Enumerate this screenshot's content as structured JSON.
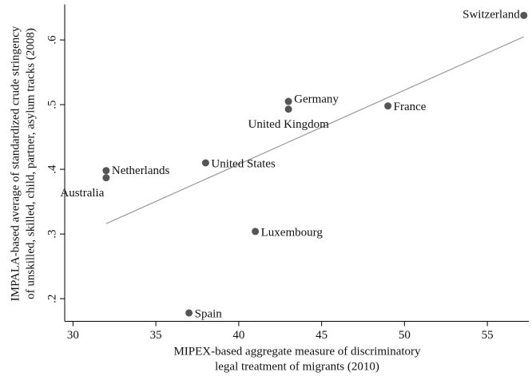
{
  "chart_data": {
    "type": "scatter",
    "x_label": [
      "MIPEX-based aggregate measure of discriminatory",
      "legal treatment of migrants (2010)"
    ],
    "y_label": [
      "IMPALA-based average of standardized crude stringency",
      "of unskilled, skilled, child, partner, asylum tracks (2008)"
    ],
    "series": [
      {
        "color": "#555555",
        "labels": [
          "Switzerland",
          "Germany",
          "United Kingdom",
          "France",
          "Netherlands",
          "Australia",
          "United States",
          "Luxembourg",
          "Spain"
        ],
        "x": [
          57.2,
          43,
          43,
          49,
          32,
          32,
          38,
          41,
          37
        ],
        "values": [
          0.638,
          0.505,
          0.493,
          0.498,
          0.398,
          0.387,
          0.41,
          0.304,
          0.178
        ]
      }
    ],
    "fit_line": {
      "color": "#999999",
      "x": [
        32,
        57.2
      ],
      "values": [
        0.316,
        0.605
      ]
    },
    "xlim": [
      29.5,
      57.5
    ],
    "xticks": [
      30,
      35,
      40,
      45,
      50,
      55
    ],
    "ylim": [
      0.165,
      0.655
    ],
    "yticks": [
      {
        "value": 0.2,
        "label": ".2"
      },
      {
        "value": 0.3,
        "label": ".3"
      },
      {
        "value": 0.4,
        "label": ".4"
      },
      {
        "value": 0.5,
        "label": ".5"
      },
      {
        "value": 0.6,
        "label": ".6"
      }
    ]
  }
}
